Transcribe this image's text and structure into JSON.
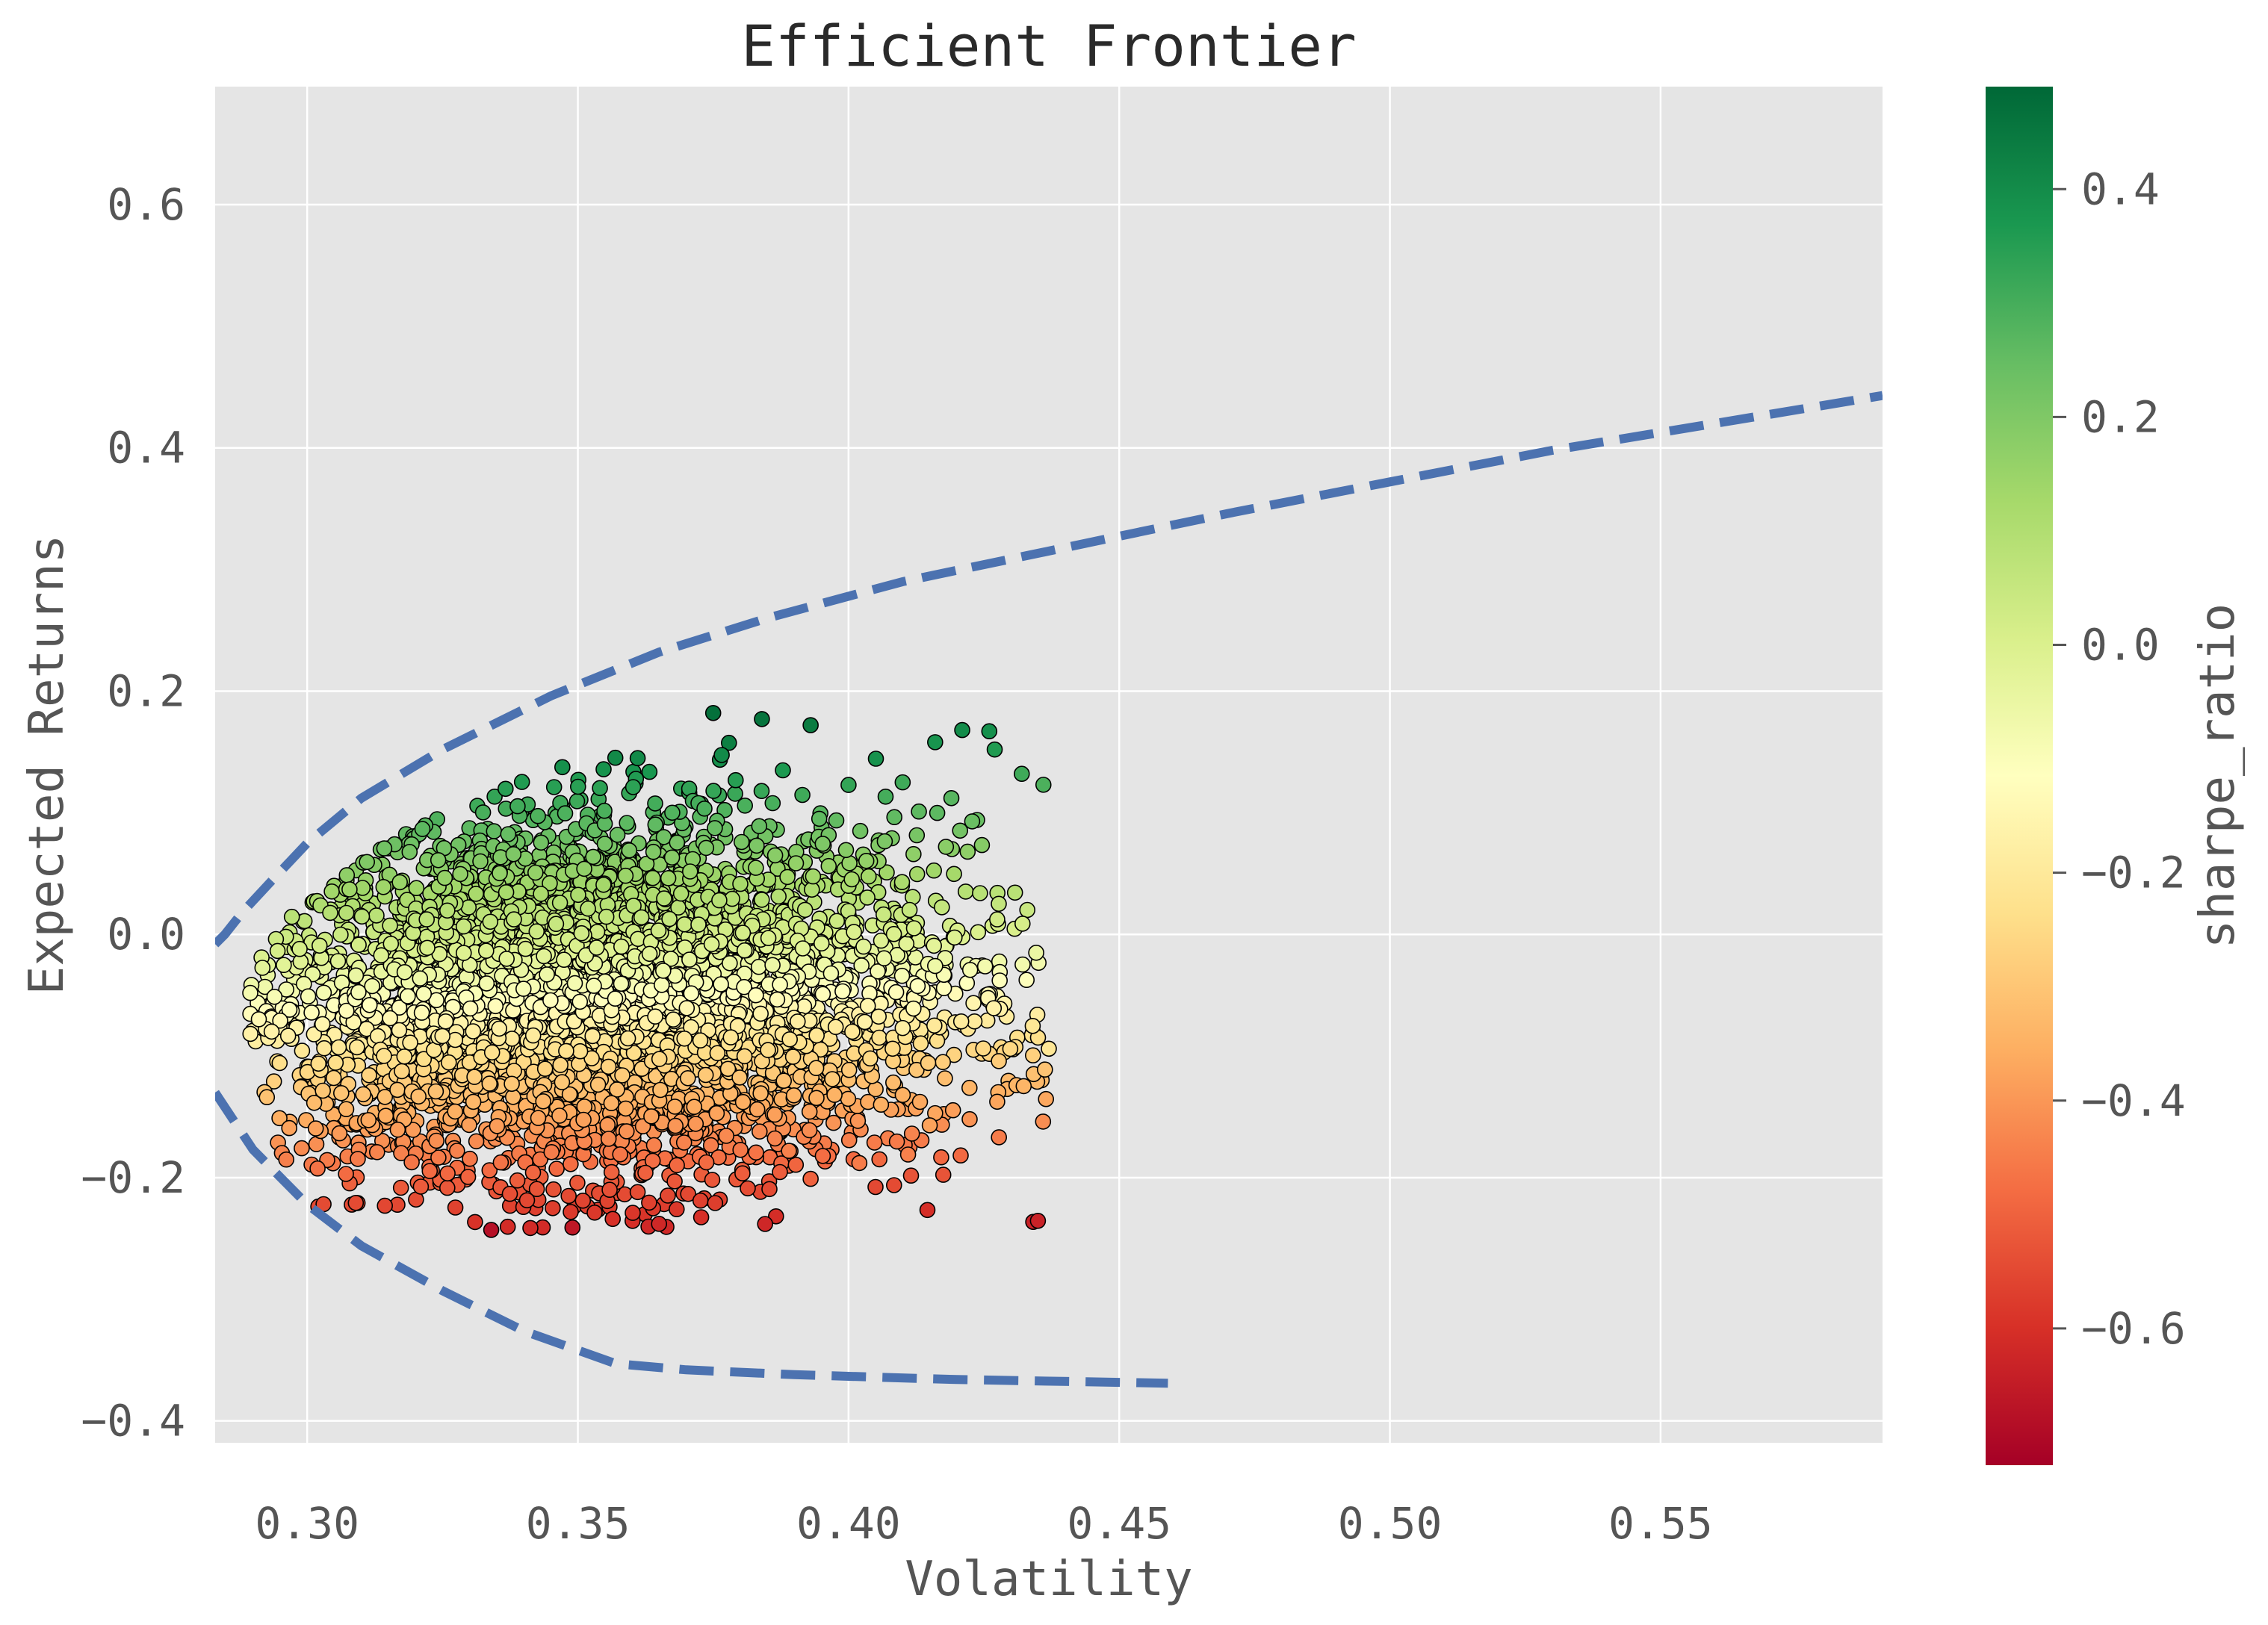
{
  "chart_data": {
    "type": "scatter",
    "title": "Efficient Frontier",
    "xlabel": "Volatility",
    "ylabel": "Expected Returns",
    "xlim": [
      0.283,
      0.591
    ],
    "ylim": [
      -0.418,
      0.697
    ],
    "xticks": [
      0.3,
      0.35,
      0.4,
      0.45,
      0.5,
      0.55
    ],
    "xtick_labels": [
      "0.30",
      "0.35",
      "0.40",
      "0.45",
      "0.50",
      "0.55"
    ],
    "yticks": [
      -0.4,
      -0.2,
      0.0,
      0.2,
      0.4,
      0.6
    ],
    "ytick_labels": [
      "−0.4",
      "−0.2",
      "0.0",
      "0.2",
      "0.4",
      "0.6"
    ],
    "grid": true,
    "colors": {
      "plot_background": "#e5e5e5",
      "grid": "#ffffff",
      "frontier_line": "#4c72b0",
      "point_edge": "#000000"
    },
    "colorbar": {
      "label": "sharpe_ratio",
      "colormap": "RdYlGn",
      "range": [
        -0.72,
        0.49
      ],
      "ticks": [
        -0.6,
        -0.4,
        -0.2,
        0.0,
        0.2,
        0.4
      ],
      "tick_labels": [
        "−0.6",
        "−0.4",
        "−0.2",
        "0.0",
        "0.2",
        "0.4"
      ],
      "stops": [
        "#a50026",
        "#d73027",
        "#f46d43",
        "#fdae61",
        "#fee08b",
        "#ffffbf",
        "#d9ef8b",
        "#a6d96a",
        "#66bd63",
        "#1a9850",
        "#006837"
      ]
    },
    "frontier": {
      "style": "dashed",
      "x": [
        0.283,
        0.2848,
        0.288,
        0.293,
        0.3,
        0.31,
        0.325,
        0.345,
        0.365,
        0.385,
        0.41,
        0.44,
        0.47,
        0.5,
        0.53,
        0.56,
        0.591
      ],
      "y": [
        -0.008,
        0.0,
        0.018,
        0.042,
        0.075,
        0.112,
        0.152,
        0.196,
        0.232,
        0.26,
        0.29,
        0.318,
        0.346,
        0.372,
        0.398,
        0.42,
        0.443
      ],
      "lower_x": [
        0.283,
        0.29,
        0.3,
        0.31,
        0.325,
        0.34,
        0.357,
        0.37,
        0.39,
        0.42,
        0.459
      ],
      "lower_y": [
        -0.13,
        -0.177,
        -0.222,
        -0.256,
        -0.293,
        -0.326,
        -0.353,
        -0.358,
        -0.362,
        -0.366,
        -0.369
      ]
    },
    "outliers": [
      {
        "x": 0.375,
        "y": 0.182,
        "sharpe": 0.47
      },
      {
        "x": 0.384,
        "y": 0.177,
        "sharpe": 0.46
      },
      {
        "x": 0.393,
        "y": 0.172,
        "sharpe": 0.44
      },
      {
        "x": 0.421,
        "y": 0.168,
        "sharpe": 0.4
      },
      {
        "x": 0.426,
        "y": 0.167,
        "sharpe": 0.39
      },
      {
        "x": 0.416,
        "y": 0.158,
        "sharpe": 0.38
      },
      {
        "x": 0.427,
        "y": 0.152,
        "sharpe": 0.36
      },
      {
        "x": 0.432,
        "y": 0.132,
        "sharpe": 0.31
      },
      {
        "x": 0.436,
        "y": 0.123,
        "sharpe": 0.29
      },
      {
        "x": 0.41,
        "y": 0.125,
        "sharpe": 0.31
      },
      {
        "x": 0.419,
        "y": 0.112,
        "sharpe": 0.27
      },
      {
        "x": 0.413,
        "y": 0.101,
        "sharpe": 0.26
      },
      {
        "x": 0.422,
        "y": 0.068,
        "sharpe": 0.17
      },
      {
        "x": 0.418,
        "y": 0.072,
        "sharpe": 0.18
      },
      {
        "x": 0.412,
        "y": 0.066,
        "sharpe": 0.17
      },
      {
        "x": 0.401,
        "y": 0.002,
        "sharpe": 0.0
      },
      {
        "x": 0.416,
        "y": -0.026,
        "sharpe": -0.06
      },
      {
        "x": 0.412,
        "y": -0.061,
        "sharpe": -0.14
      },
      {
        "x": 0.41,
        "y": -0.077,
        "sharpe": -0.18
      },
      {
        "x": 0.403,
        "y": -0.072,
        "sharpe": -0.17
      },
      {
        "x": 0.437,
        "y": -0.094,
        "sharpe": -0.21
      },
      {
        "x": 0.404,
        "y": -0.102,
        "sharpe": -0.25
      },
      {
        "x": 0.397,
        "y": -0.119,
        "sharpe": -0.29
      },
      {
        "x": 0.406,
        "y": -0.14,
        "sharpe": -0.35
      },
      {
        "x": 0.416,
        "y": -0.147,
        "sharpe": -0.37
      },
      {
        "x": 0.415,
        "y": -0.157,
        "sharpe": -0.38
      },
      {
        "x": 0.402,
        "y": -0.188,
        "sharpe": -0.45
      },
      {
        "x": 0.393,
        "y": -0.201,
        "sharpe": -0.5
      },
      {
        "x": 0.411,
        "y": -0.181,
        "sharpe": -0.44
      },
      {
        "x": 0.389,
        "y": -0.178,
        "sharpe": -0.44
      },
      {
        "x": 0.365,
        "y": -0.238,
        "sharpe": -0.62
      },
      {
        "x": 0.334,
        "y": -0.243,
        "sharpe": -0.68
      },
      {
        "x": 0.349,
        "y": -0.241,
        "sharpe": -0.66
      }
    ],
    "cloud": {
      "description": "Monte Carlo portfolios (~5000 points), colored by Sharpe ratio",
      "point_count": 5000,
      "x_center": 0.352,
      "x_spread": 0.026,
      "y_center": -0.052,
      "y_spread": 0.072,
      "x_range": [
        0.288,
        0.437
      ],
      "y_range": [
        -0.243,
        0.182
      ],
      "sharpe_range": [
        -0.68,
        0.47
      ]
    }
  }
}
